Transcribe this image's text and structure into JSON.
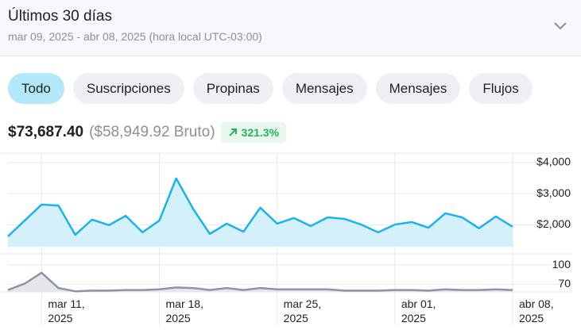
{
  "header": {
    "title": "Últimos 30 días",
    "subtitle": "mar 09, 2025 - abr 08, 2025 (hora local UTC-03:00)"
  },
  "tabs": [
    "Todo",
    "Suscripciones",
    "Propinas",
    "Mensajes",
    "Mensajes",
    "Flujos"
  ],
  "stats": {
    "total": "$73,687.40",
    "gross": "($58,949.92 Bruto)",
    "change": "321.3%"
  },
  "chart_data": [
    {
      "type": "area",
      "color": "#1ab3ee",
      "fill": "#d4f1fb",
      "values": [
        1630,
        2140,
        2650,
        2620,
        1680,
        2170,
        1990,
        2290,
        1760,
        2140,
        3490,
        2520,
        1710,
        2040,
        1780,
        2550,
        2040,
        2220,
        1960,
        2240,
        2190,
        2010,
        1760,
        2010,
        2090,
        1910,
        2370,
        2240,
        1890,
        2270,
        1940
      ],
      "ylim": [
        1300,
        4300
      ],
      "yticks": [
        {
          "value": 2000,
          "label": "$2,000"
        },
        {
          "value": 3000,
          "label": "$3,000"
        },
        {
          "value": 4000,
          "label": "$4,000"
        }
      ],
      "grid": true
    },
    {
      "type": "area",
      "color": "#8a96a3",
      "fill": "#e5e7ea",
      "categories": [
        null,
        null,
        "mar 11, 2025",
        null,
        null,
        null,
        null,
        null,
        null,
        "mar 18, 2025",
        null,
        null,
        null,
        null,
        null,
        null,
        "mar 25, 2025",
        null,
        null,
        null,
        null,
        null,
        null,
        "abr 01, 2025",
        null,
        null,
        null,
        null,
        null,
        null,
        "abr 08, 2025"
      ],
      "values": [
        61,
        71,
        88,
        64,
        59,
        60,
        60,
        61,
        61,
        62,
        65,
        64,
        61,
        64,
        61,
        64,
        62,
        62,
        62,
        62,
        60,
        60,
        60,
        61,
        61,
        60,
        62,
        61,
        61,
        62,
        61
      ],
      "ylim": [
        58,
        115
      ],
      "yticks": [
        70,
        100
      ],
      "grid": true
    }
  ]
}
